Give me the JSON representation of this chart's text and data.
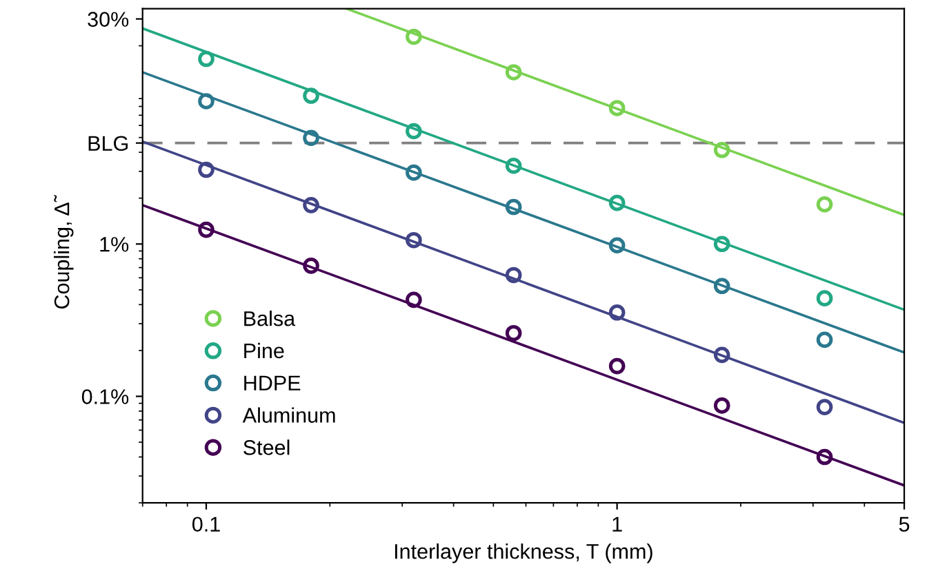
{
  "chart_data": {
    "type": "scatter",
    "xlabel": "Interlayer thickness, T (mm)",
    "ylabel": "Coupling, Δ̃",
    "log": "xy",
    "xlim": [
      0.07,
      5
    ],
    "ylim": [
      0.02,
      35
    ],
    "xticks": [
      0.1,
      1,
      5
    ],
    "yticks": [
      {
        "value": 0.1,
        "label": "0.1%"
      },
      {
        "value": 1,
        "label": "1%"
      },
      {
        "value": 4.6,
        "label": "BLG"
      },
      {
        "value": 30,
        "label": "30%"
      }
    ],
    "grid": false,
    "legend": "bottom left",
    "marker": "circle",
    "ref_lines": [
      {
        "axis": "y",
        "value": 4.6,
        "color": "#808080",
        "line_style": "dashed"
      }
    ],
    "series": [
      {
        "name": "Balsa",
        "color": "#7ad151",
        "x": [
          0.32,
          0.56,
          1,
          1.8,
          3.2
        ],
        "values": [
          22.9,
          13.4,
          7.8,
          4.14,
          1.82
        ]
      },
      {
        "name": "Pine",
        "color": "#22a884",
        "x": [
          0.1,
          0.18,
          0.32,
          0.56,
          1,
          1.8,
          3.2
        ],
        "values": [
          16.4,
          9.4,
          5.5,
          3.26,
          1.86,
          1.0,
          0.44
        ]
      },
      {
        "name": "HDPE",
        "color": "#2a788e",
        "x": [
          0.1,
          0.18,
          0.32,
          0.56,
          1,
          1.8,
          3.2
        ],
        "values": [
          8.65,
          4.97,
          2.94,
          1.75,
          0.98,
          0.53,
          0.235
        ]
      },
      {
        "name": "Aluminum",
        "color": "#414487",
        "x": [
          0.1,
          0.18,
          0.32,
          0.56,
          1,
          1.8,
          3.2
        ],
        "values": [
          3.07,
          1.8,
          1.06,
          0.625,
          0.355,
          0.187,
          0.085
        ]
      },
      {
        "name": "Steel",
        "color": "#440154",
        "x": [
          0.1,
          0.18,
          0.32,
          0.56,
          1,
          1.8,
          3.2
        ],
        "values": [
          1.24,
          0.72,
          0.43,
          0.26,
          0.158,
          0.087,
          0.04
        ]
      },
      {
        "type": "line",
        "color": "#7ad151",
        "marker": "none",
        "x": [
          0.22,
          5
        ],
        "values": [
          35,
          1.55
        ]
      },
      {
        "type": "line",
        "color": "#22a884",
        "marker": "none",
        "x": [
          0.07,
          5
        ],
        "values": [
          26,
          0.37
        ]
      },
      {
        "type": "line",
        "color": "#2a788e",
        "marker": "none",
        "x": [
          0.07,
          5
        ],
        "values": [
          13.4,
          0.194
        ]
      },
      {
        "type": "line",
        "color": "#414487",
        "marker": "none",
        "x": [
          0.07,
          5
        ],
        "values": [
          4.7,
          0.067
        ]
      },
      {
        "type": "line",
        "color": "#440154",
        "marker": "none",
        "x": [
          0.07,
          5
        ],
        "values": [
          1.8,
          0.026
        ]
      }
    ]
  }
}
